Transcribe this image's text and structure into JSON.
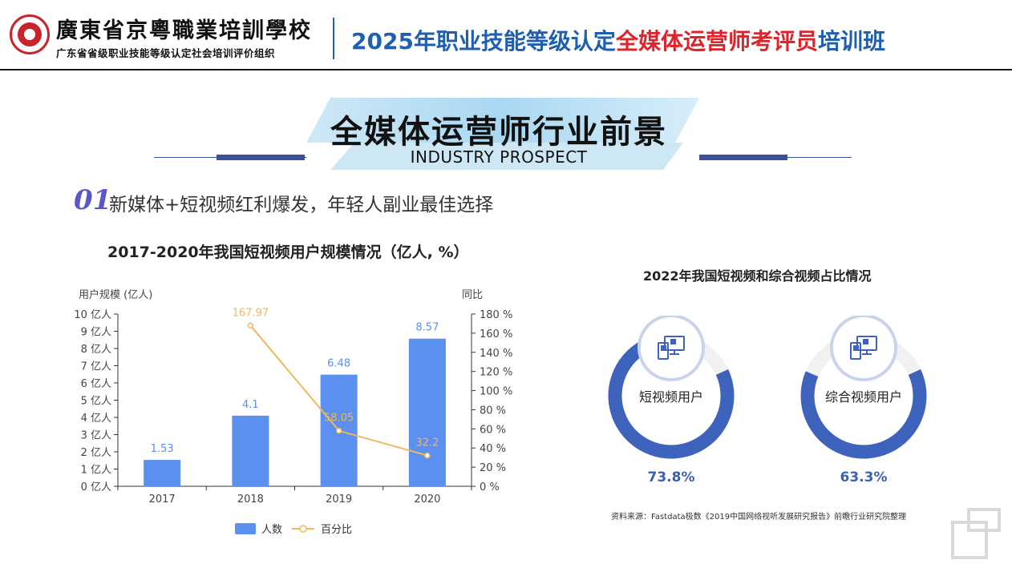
{
  "header": {
    "school_name": "廣東省京粵職業培訓學校",
    "school_sub": "广东省省级职业技能等级认定社会培训评价组织",
    "course_title_part1": "2025年职业技能等级认定",
    "course_title_part2": "全媒体运营师考评员",
    "course_title_part3": "培训班",
    "accent_blue": "#1f5fb0",
    "accent_red": "#e0222a"
  },
  "banner": {
    "title": "全媒体运营师行业前景",
    "subtitle": "INDUSTRY PROSPECT"
  },
  "section": {
    "number": "01",
    "text": "新媒体+短视频红利爆发，年轻人副业最佳选择"
  },
  "chart_data": [
    {
      "type": "bar",
      "title": "2017-2020年我国短视频用户规模情况（亿人, %）",
      "categories": [
        "2017",
        "2018",
        "2019",
        "2020"
      ],
      "ylabel_left": "用户规模 (亿人)",
      "ylabel_right": "同比",
      "ylim_left": [
        0,
        10
      ],
      "ylim_right": [
        0,
        180
      ],
      "yticks_left": [
        "0 亿人",
        "1 亿人",
        "2 亿人",
        "3 亿人",
        "4 亿人",
        "5 亿人",
        "6 亿人",
        "7 亿人",
        "8 亿人",
        "9 亿人",
        "10 亿人"
      ],
      "yticks_right": [
        "0 %",
        "20 %",
        "40 %",
        "60 %",
        "80 %",
        "100 %",
        "120 %",
        "140 %",
        "160 %",
        "180 %"
      ],
      "series": [
        {
          "name": "人数",
          "kind": "bar",
          "color": "#5b8ff0",
          "values": [
            1.53,
            4.1,
            6.48,
            8.57
          ],
          "labels": [
            "1.53",
            "4.1",
            "6.48",
            "8.57"
          ]
        },
        {
          "name": "百分比",
          "kind": "line",
          "color": "#f0b85a",
          "x": [
            "2018",
            "2019",
            "2020"
          ],
          "values": [
            167.97,
            58.05,
            32.2
          ],
          "labels": [
            "167.97",
            "58.05",
            "32.2"
          ]
        }
      ],
      "grid": false,
      "legend": "bottom"
    },
    {
      "type": "pie",
      "title": "2022年我国短视频和综合视频占比情况",
      "series": [
        {
          "name": "短视频用户",
          "value": 73.8,
          "label": "73.8%"
        },
        {
          "name": "综合视频用户",
          "value": 63.3,
          "label": "63.3%"
        }
      ],
      "colors": {
        "fill": "#3d63bd",
        "track": "#f1f1f1"
      }
    }
  ],
  "source": "资料来源：Fastdata极数《2019中国网络视听发展研究报告》前瞻行业研究院整理"
}
